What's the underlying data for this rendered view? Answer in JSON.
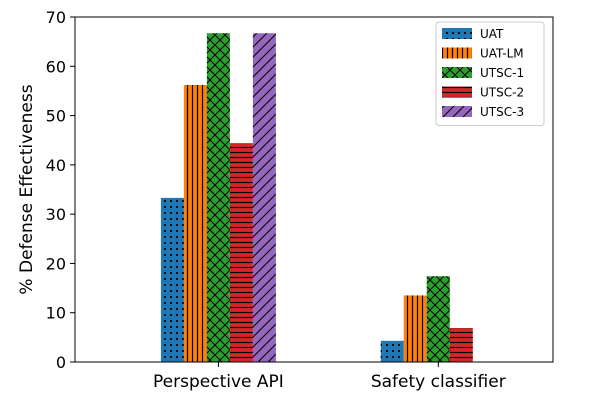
{
  "chart_data": {
    "type": "bar",
    "title": "",
    "xlabel": "",
    "ylabel": "% Defense Effectiveness",
    "ylim": [
      0,
      70
    ],
    "yticks": [
      0,
      10,
      20,
      30,
      40,
      50,
      60,
      70
    ],
    "categories": [
      "Perspective API",
      "Safety classifier"
    ],
    "grid": false,
    "legend_position": "top-right",
    "series": [
      {
        "name": "UAT",
        "values": [
          33.3,
          4.3
        ],
        "color": "#1f77b4",
        "hatch": "dots"
      },
      {
        "name": "UAT-LM",
        "values": [
          56.2,
          13.5
        ],
        "color": "#ff7f0e",
        "hatch": "vertical"
      },
      {
        "name": "UTSC-1",
        "values": [
          66.7,
          17.4
        ],
        "color": "#2ca02c",
        "hatch": "cross"
      },
      {
        "name": "UTSC-2",
        "values": [
          44.4,
          6.9
        ],
        "color": "#d62728",
        "hatch": "horizontal"
      },
      {
        "name": "UTSC-3",
        "values": [
          66.7,
          null
        ],
        "color": "#9467bd",
        "hatch": "diagonal"
      }
    ]
  }
}
